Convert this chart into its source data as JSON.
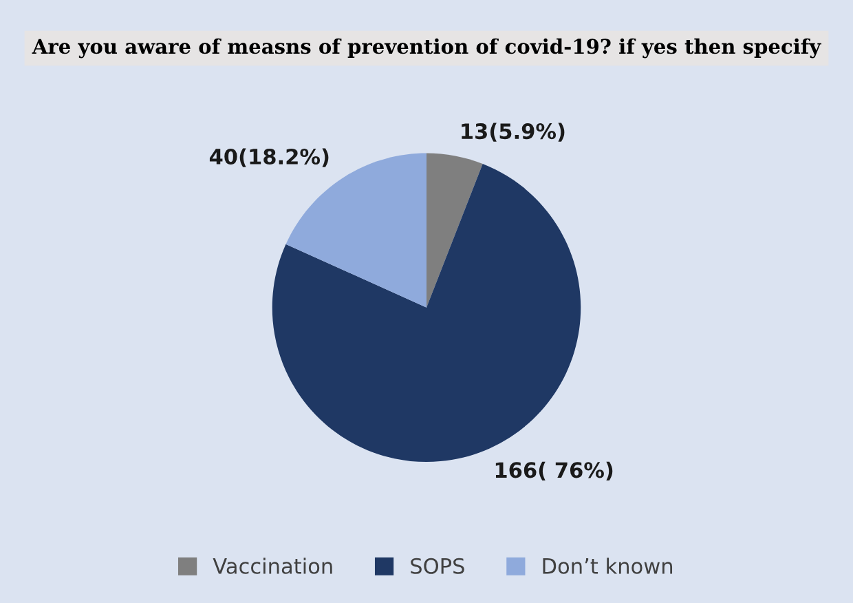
{
  "chart_data": {
    "type": "pie",
    "title": "Are you aware of measns of prevention of covid-19? if yes then specify",
    "categories": [
      "Vaccination",
      "SOPS",
      "Don’t known"
    ],
    "values": [
      13,
      166,
      40
    ],
    "colors": [
      "#7f7f7f",
      "#1f3864",
      "#8faadc"
    ],
    "value_labels": [
      "13(5.9%)",
      "166( 76%)",
      "40(18.2%)"
    ],
    "legend": "bottom"
  }
}
